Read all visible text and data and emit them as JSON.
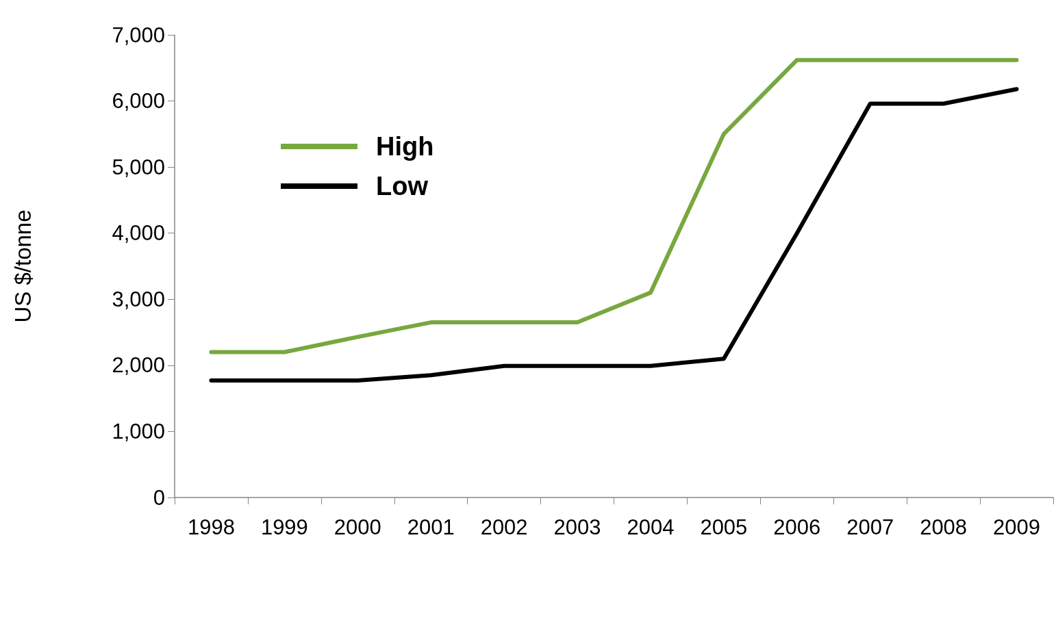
{
  "chart_data": {
    "type": "line",
    "ylabel": "US $/tonne",
    "categories": [
      "1998",
      "1999",
      "2000",
      "2001",
      "2002",
      "2003",
      "2004",
      "2005",
      "2006",
      "2007",
      "2008",
      "2009"
    ],
    "series": [
      {
        "name": "High",
        "color": "#77a83f",
        "values": [
          2200,
          2200,
          2430,
          2650,
          2650,
          2650,
          3100,
          5500,
          6620,
          6620,
          6620,
          6620
        ]
      },
      {
        "name": "Low",
        "color": "#000000",
        "values": [
          1770,
          1770,
          1770,
          1850,
          1990,
          1990,
          1990,
          2100,
          4000,
          5960,
          5960,
          6180
        ]
      }
    ],
    "ylim": [
      0,
      7000
    ],
    "yticks": [
      0,
      {
        "value": 1000,
        "label": "1,000"
      },
      {
        "value": 2000,
        "label": "2,000"
      },
      {
        "value": 3000,
        "label": "3,000"
      },
      {
        "value": 4000,
        "label": "4,000"
      },
      {
        "value": 5000,
        "label": "5,000"
      },
      {
        "value": 6000,
        "label": "6,000"
      },
      {
        "value": 7000,
        "label": "7,000"
      }
    ],
    "grid": false,
    "legend": "top left",
    "marker": "none",
    "line_style": "solid"
  }
}
